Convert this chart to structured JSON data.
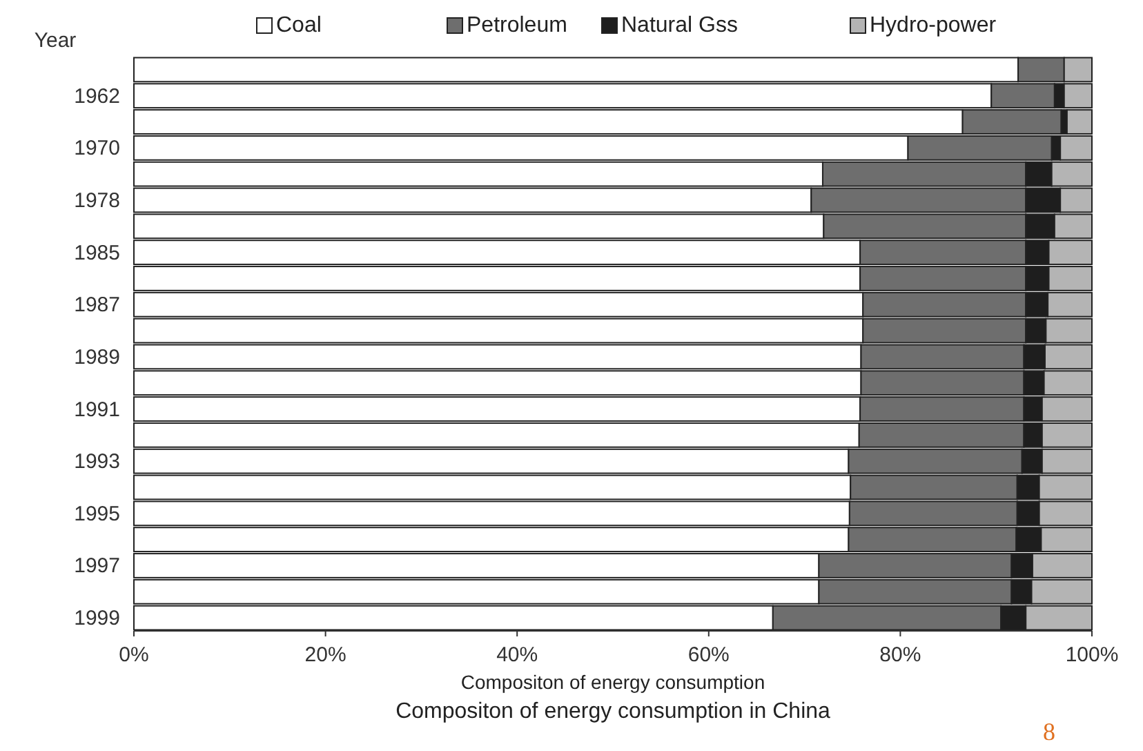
{
  "chart_data": {
    "type": "bar",
    "orientation": "horizontal",
    "stacked": true,
    "title": "Compositon of energy consumption in China",
    "xlabel": "Compositon of energy consumption",
    "ylabel": "Year",
    "legend": "top",
    "annotations": [
      "8"
    ],
    "categories": [
      null,
      "1962",
      null,
      "1970",
      null,
      "1978",
      null,
      "1985",
      null,
      "1987",
      null,
      "1989",
      null,
      "1991",
      null,
      "1993",
      null,
      "1995",
      null,
      "1997",
      null,
      "1999"
    ],
    "xlim": [
      0,
      100
    ],
    "xticks": [
      {
        "value": 0,
        "label": "0%"
      },
      {
        "value": 20,
        "label": "20%"
      },
      {
        "value": 40,
        "label": "40%"
      },
      {
        "value": 60,
        "label": "60%"
      },
      {
        "value": 80,
        "label": "80%"
      },
      {
        "value": 100,
        "label": "100%"
      }
    ],
    "series": [
      {
        "name": "Coal",
        "color": "#ffffff",
        "values": [
          92.3,
          89.5,
          86.5,
          80.8,
          71.9,
          70.7,
          72.0,
          75.8,
          75.8,
          76.1,
          76.1,
          75.9,
          75.9,
          75.8,
          75.7,
          74.6,
          74.8,
          74.7,
          74.6,
          71.5,
          71.5,
          66.7
        ]
      },
      {
        "name": "Petroleum",
        "color": "#6e6e6e",
        "values": [
          4.8,
          6.6,
          10.3,
          15.0,
          21.2,
          22.4,
          21.1,
          17.3,
          17.3,
          17.0,
          17.0,
          17.0,
          17.0,
          17.1,
          17.2,
          18.1,
          17.4,
          17.5,
          17.5,
          20.1,
          20.1,
          23.8
        ]
      },
      {
        "name": "Natural Gss",
        "color": "#1e1e1e",
        "values": [
          0,
          1.0,
          0.6,
          0.9,
          2.7,
          3.6,
          3.0,
          2.4,
          2.4,
          2.3,
          2.1,
          2.2,
          2.1,
          1.9,
          1.9,
          2.1,
          2.3,
          2.3,
          2.6,
          2.2,
          2.1,
          2.6
        ]
      },
      {
        "name": "Hydro-power",
        "color": "#b4b4b4",
        "values": [
          2.9,
          2.9,
          2.6,
          3.3,
          4.2,
          3.3,
          3.9,
          4.5,
          4.5,
          4.6,
          4.8,
          4.9,
          5.0,
          5.2,
          5.2,
          5.2,
          5.5,
          5.5,
          5.3,
          6.2,
          6.3,
          6.9
        ]
      }
    ]
  }
}
